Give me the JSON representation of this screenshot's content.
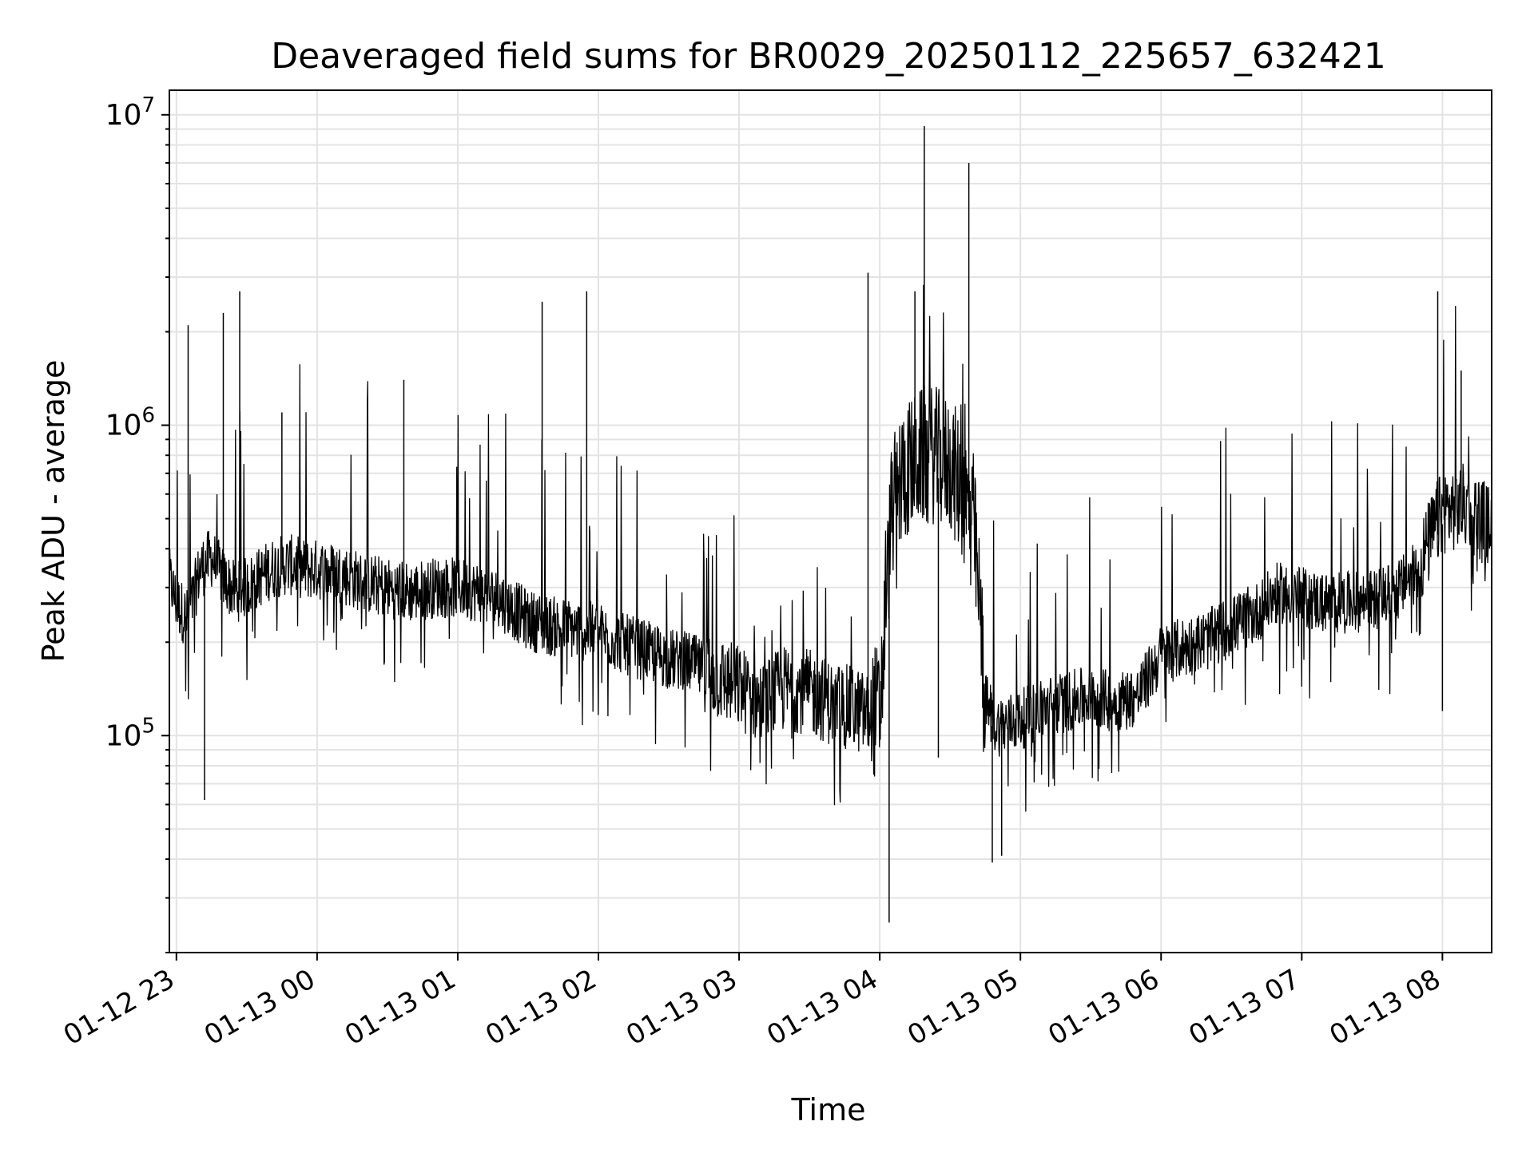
{
  "chart_data": {
    "type": "line",
    "title": "Deaveraged field sums for BR0029_20250112_225657_632421",
    "xlabel": "Time",
    "ylabel": "Peak ADU - average",
    "yscale": "log",
    "ylim": [
      20000,
      12000000
    ],
    "xlim": [
      "2025-01-12 22:57",
      "2025-01-13 08:21"
    ],
    "grid": true,
    "line_color": "#000000",
    "x_ticks": [
      "01-12 23",
      "01-13 00",
      "01-13 01",
      "01-13 02",
      "01-13 03",
      "01-13 04",
      "01-13 05",
      "01-13 06",
      "01-13 07",
      "01-13 08"
    ],
    "x_tick_times": [
      "2025-01-12 23:00",
      "2025-01-13 00:00",
      "2025-01-13 01:00",
      "2025-01-13 02:00",
      "2025-01-13 03:00",
      "2025-01-13 04:00",
      "2025-01-13 05:00",
      "2025-01-13 06:00",
      "2025-01-13 07:00",
      "2025-01-13 08:00"
    ],
    "y_ticks": [
      {
        "value": 100000,
        "base": "10",
        "exp": "5"
      },
      {
        "value": 1000000,
        "base": "10",
        "exp": "6"
      },
      {
        "value": 10000000,
        "base": "10",
        "exp": "7"
      }
    ],
    "series": [
      {
        "x": [
          "2025-01-12 22:57",
          "2025-01-12 23:00",
          "2025-01-12 23:05",
          "2025-01-12 23:10",
          "2025-01-12 23:15",
          "2025-01-12 23:20",
          "2025-01-12 23:25",
          "2025-01-12 23:30",
          "2025-01-12 23:35",
          "2025-01-12 23:40",
          "2025-01-12 23:45",
          "2025-01-12 23:50",
          "2025-01-12 23:55",
          "2025-01-13 00:00",
          "2025-01-13 00:10",
          "2025-01-13 00:20",
          "2025-01-13 00:30",
          "2025-01-13 00:40",
          "2025-01-13 00:50",
          "2025-01-13 01:00",
          "2025-01-13 01:10",
          "2025-01-13 01:20",
          "2025-01-13 01:30",
          "2025-01-13 01:40",
          "2025-01-13 01:50",
          "2025-01-13 02:00",
          "2025-01-13 02:10",
          "2025-01-13 02:20",
          "2025-01-13 02:30",
          "2025-01-13 02:40",
          "2025-01-13 02:50",
          "2025-01-13 03:00",
          "2025-01-13 03:10",
          "2025-01-13 03:20",
          "2025-01-13 03:30",
          "2025-01-13 03:40",
          "2025-01-13 03:50",
          "2025-01-13 04:00",
          "2025-01-13 04:05",
          "2025-01-13 04:10",
          "2025-01-13 04:20",
          "2025-01-13 04:30",
          "2025-01-13 04:40",
          "2025-01-13 04:45",
          "2025-01-13 04:50",
          "2025-01-13 05:00",
          "2025-01-13 05:10",
          "2025-01-13 05:20",
          "2025-01-13 05:30",
          "2025-01-13 05:40",
          "2025-01-13 05:50",
          "2025-01-13 06:00",
          "2025-01-13 06:10",
          "2025-01-13 06:20",
          "2025-01-13 06:30",
          "2025-01-13 06:40",
          "2025-01-13 06:50",
          "2025-01-13 07:00",
          "2025-01-13 07:10",
          "2025-01-13 07:20",
          "2025-01-13 07:30",
          "2025-01-13 07:40",
          "2025-01-13 07:50",
          "2025-01-13 08:00",
          "2025-01-13 08:10",
          "2025-01-13 08:21"
        ],
        "y": [
          300000,
          250000,
          220000,
          320000,
          350000,
          300000,
          270000,
          280000,
          300000,
          320000,
          330000,
          330000,
          320000,
          320000,
          310000,
          290000,
          280000,
          270000,
          280000,
          280000,
          270000,
          250000,
          220000,
          210000,
          205000,
          200000,
          185000,
          175000,
          165000,
          160000,
          140000,
          130000,
          115000,
          130000,
          125000,
          115000,
          110000,
          100000,
          450000,
          600000,
          700000,
          650000,
          420000,
          120000,
          100000,
          105000,
          115000,
          120000,
          125000,
          120000,
          125000,
          170000,
          180000,
          190000,
          210000,
          230000,
          270000,
          260000,
          250000,
          250000,
          255000,
          270000,
          320000,
          480000,
          500000,
          420000
        ],
        "spikes": [
          {
            "x": "2025-01-12 23:05",
            "y": 2100000
          },
          {
            "x": "2025-01-12 23:12",
            "y": 62000
          },
          {
            "x": "2025-01-12 23:20",
            "y": 2300000
          },
          {
            "x": "2025-01-12 23:27",
            "y": 2700000
          },
          {
            "x": "2025-01-12 23:45",
            "y": 1100000
          },
          {
            "x": "2025-01-13 00:37",
            "y": 1400000
          },
          {
            "x": "2025-01-13 01:36",
            "y": 2500000
          },
          {
            "x": "2025-01-13 01:55",
            "y": 2700000
          },
          {
            "x": "2025-01-13 03:55",
            "y": 3100000
          },
          {
            "x": "2025-01-13 04:04",
            "y": 25000
          },
          {
            "x": "2025-01-13 04:15",
            "y": 2700000
          },
          {
            "x": "2025-01-13 04:19",
            "y": 9200000
          },
          {
            "x": "2025-01-13 04:25",
            "y": 85000
          },
          {
            "x": "2025-01-13 04:38",
            "y": 7000000
          },
          {
            "x": "2025-01-13 04:48",
            "y": 39000
          },
          {
            "x": "2025-01-13 04:52",
            "y": 41000
          },
          {
            "x": "2025-01-13 07:58",
            "y": 2700000
          },
          {
            "x": "2025-01-13 08:00",
            "y": 120000
          },
          {
            "x": "2025-01-13 08:08",
            "y": 1500000
          }
        ]
      }
    ]
  }
}
